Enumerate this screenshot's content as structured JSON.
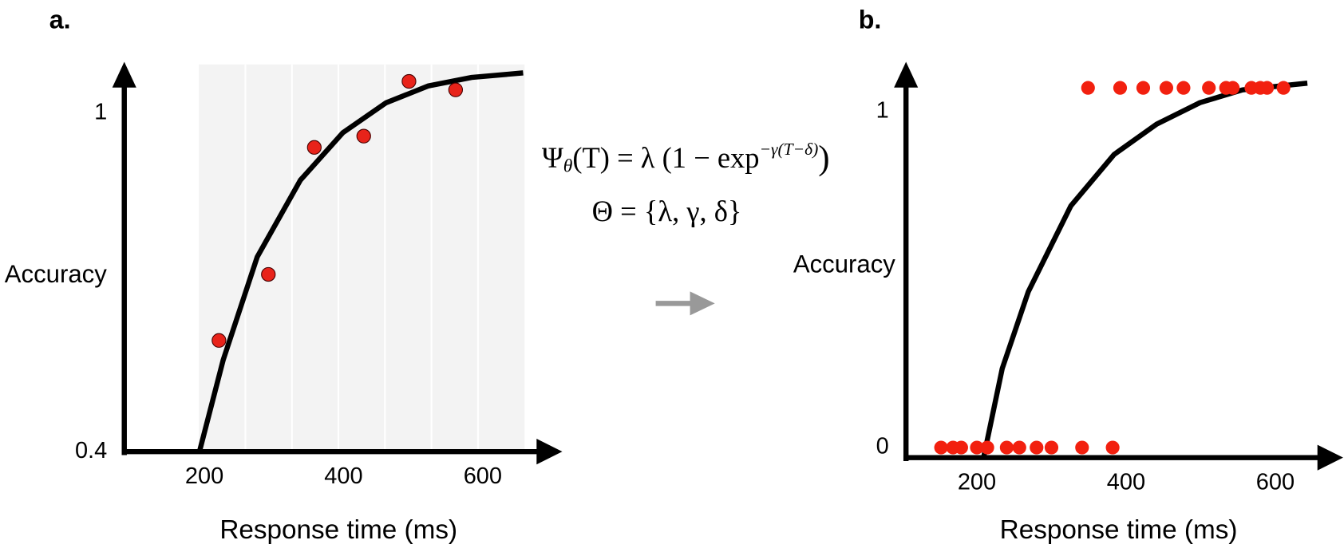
{
  "chart_data": [
    {
      "type": "scatter",
      "title": "a.",
      "x_label": "Response time (ms)",
      "y_label": "Accuracy",
      "xlim": [
        85,
        665
      ],
      "ylim": [
        0.4,
        1.08
      ],
      "xticks": [
        200,
        400,
        600
      ],
      "yticks": [
        0.4,
        1
      ],
      "points": {
        "color": "#e8231a",
        "x": [
          221,
          292,
          358,
          429,
          494,
          561
        ],
        "values": [
          0.597,
          0.714,
          0.939,
          0.959,
          1.056,
          1.041
        ]
      },
      "curve": {
        "color": "#000000",
        "x": [
          193,
          227,
          276,
          338,
          399,
          461,
          522,
          584,
          658
        ],
        "values": [
          0.4,
          0.562,
          0.745,
          0.881,
          0.965,
          1.018,
          1.048,
          1.063,
          1.071
        ]
      }
    },
    {
      "type": "scatter",
      "title": "b.",
      "x_label": "Response time (ms)",
      "y_label": "Accuracy",
      "xlim": [
        105,
        645
      ],
      "ylim": [
        -0.03,
        1.15
      ],
      "xticks": [
        200,
        400,
        600
      ],
      "yticks": [
        0,
        1
      ],
      "points": {
        "color": "#f2200f",
        "x": [
          349,
          392,
          423,
          454,
          477,
          511,
          534,
          543,
          568,
          580,
          589,
          611,
          152,
          168,
          179,
          200,
          214,
          240,
          257,
          280,
          300,
          341,
          382
        ],
        "values": [
          1.07,
          1.07,
          1.07,
          1.07,
          1.07,
          1.07,
          1.07,
          1.07,
          1.07,
          1.07,
          1.07,
          1.07,
          0,
          0,
          0,
          0,
          0,
          0,
          0,
          0,
          0,
          0,
          0
        ]
      },
      "curve": {
        "color": "#000000",
        "x": [
          209,
          234,
          269,
          326,
          384,
          441,
          499,
          556,
          643
        ],
        "values": [
          -0.03,
          0.235,
          0.464,
          0.719,
          0.872,
          0.962,
          1.026,
          1.064,
          1.084
        ]
      }
    }
  ],
  "formula": {
    "psi": "Ψ",
    "psi_sub": "θ",
    "body": "(T) = λ (1 − exp",
    "exponent": "−γ(T−δ)",
    "close": ")",
    "params": "Θ = {λ, γ, δ}"
  }
}
